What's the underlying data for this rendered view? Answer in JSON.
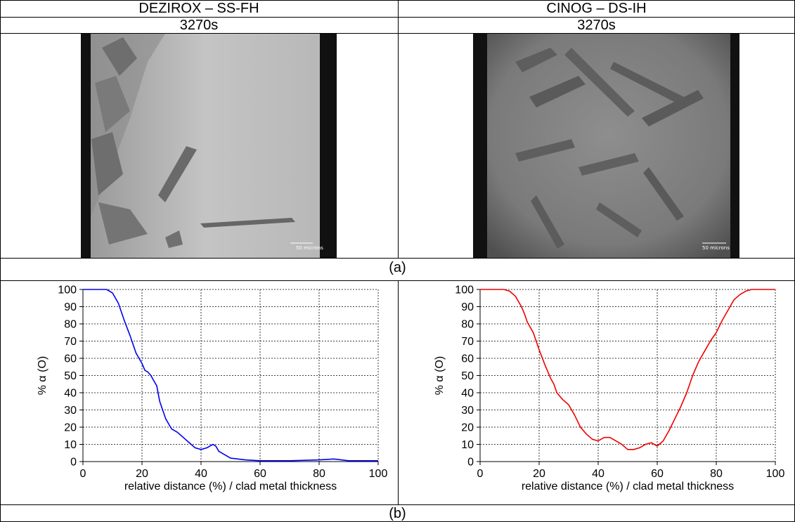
{
  "table": {
    "col_left_title": "DEZIROX – SS-FH",
    "col_right_title": "CINOG – DS-IH",
    "time_left": "3270s",
    "time_right": "3270s",
    "caption_a": "(a)",
    "caption_b": "(b)"
  },
  "micrographs": {
    "left_scale_label": "50 microns",
    "right_scale_label": "50 microns"
  },
  "chart_data": [
    {
      "type": "line",
      "xlabel": "relative distance (%) / clad metal thickness",
      "ylabel": "% α (O)",
      "xlim": [
        0,
        100
      ],
      "ylim": [
        0,
        100
      ],
      "xticks": [
        0,
        20,
        40,
        60,
        80,
        100
      ],
      "yticks": [
        0,
        10,
        20,
        30,
        40,
        50,
        60,
        70,
        80,
        90,
        100
      ],
      "grid": true,
      "color": "#0000ee",
      "series": [
        {
          "x": [
            0,
            5,
            8,
            10,
            12,
            14,
            16,
            18,
            19,
            20,
            21,
            22,
            23,
            24,
            25,
            26,
            27,
            28,
            29,
            30,
            32,
            34,
            36,
            38,
            40,
            42,
            44,
            45,
            46,
            48,
            50,
            55,
            60,
            70,
            80,
            85,
            90,
            100
          ],
          "y": [
            100,
            100,
            100,
            98,
            92,
            82,
            73,
            63,
            60,
            57,
            53,
            52,
            50,
            47,
            44,
            35,
            30,
            25,
            22,
            19,
            17,
            14,
            11,
            8,
            7,
            8,
            10,
            9,
            6,
            4,
            2,
            1,
            0.5,
            0.5,
            1,
            1.5,
            0.5,
            0.5
          ]
        }
      ]
    },
    {
      "type": "line",
      "xlabel": "relative distance (%) / clad metal thickness",
      "ylabel": "% α (O)",
      "xlim": [
        0,
        100
      ],
      "ylim": [
        0,
        100
      ],
      "xticks": [
        0,
        20,
        40,
        60,
        80,
        100
      ],
      "yticks": [
        0,
        10,
        20,
        30,
        40,
        50,
        60,
        70,
        80,
        90,
        100
      ],
      "grid": true,
      "color": "#ee0000",
      "series": [
        {
          "x": [
            0,
            5,
            8,
            10,
            12,
            14,
            15,
            16,
            18,
            20,
            22,
            24,
            25,
            26,
            28,
            30,
            32,
            34,
            36,
            38,
            40,
            42,
            44,
            46,
            48,
            50,
            52,
            54,
            56,
            58,
            60,
            62,
            64,
            66,
            68,
            70,
            72,
            74,
            76,
            78,
            80,
            82,
            84,
            86,
            88,
            90,
            92,
            95,
            100
          ],
          "y": [
            100,
            100,
            100,
            99,
            96,
            90,
            86,
            81,
            75,
            65,
            56,
            48,
            45,
            40,
            36,
            33,
            27,
            20,
            16,
            13,
            12,
            14,
            14,
            12,
            10,
            7,
            7,
            8,
            10,
            11,
            9,
            12,
            18,
            25,
            32,
            40,
            50,
            58,
            64,
            70,
            75,
            82,
            88,
            94,
            97,
            99,
            100,
            100,
            100
          ]
        }
      ]
    }
  ]
}
